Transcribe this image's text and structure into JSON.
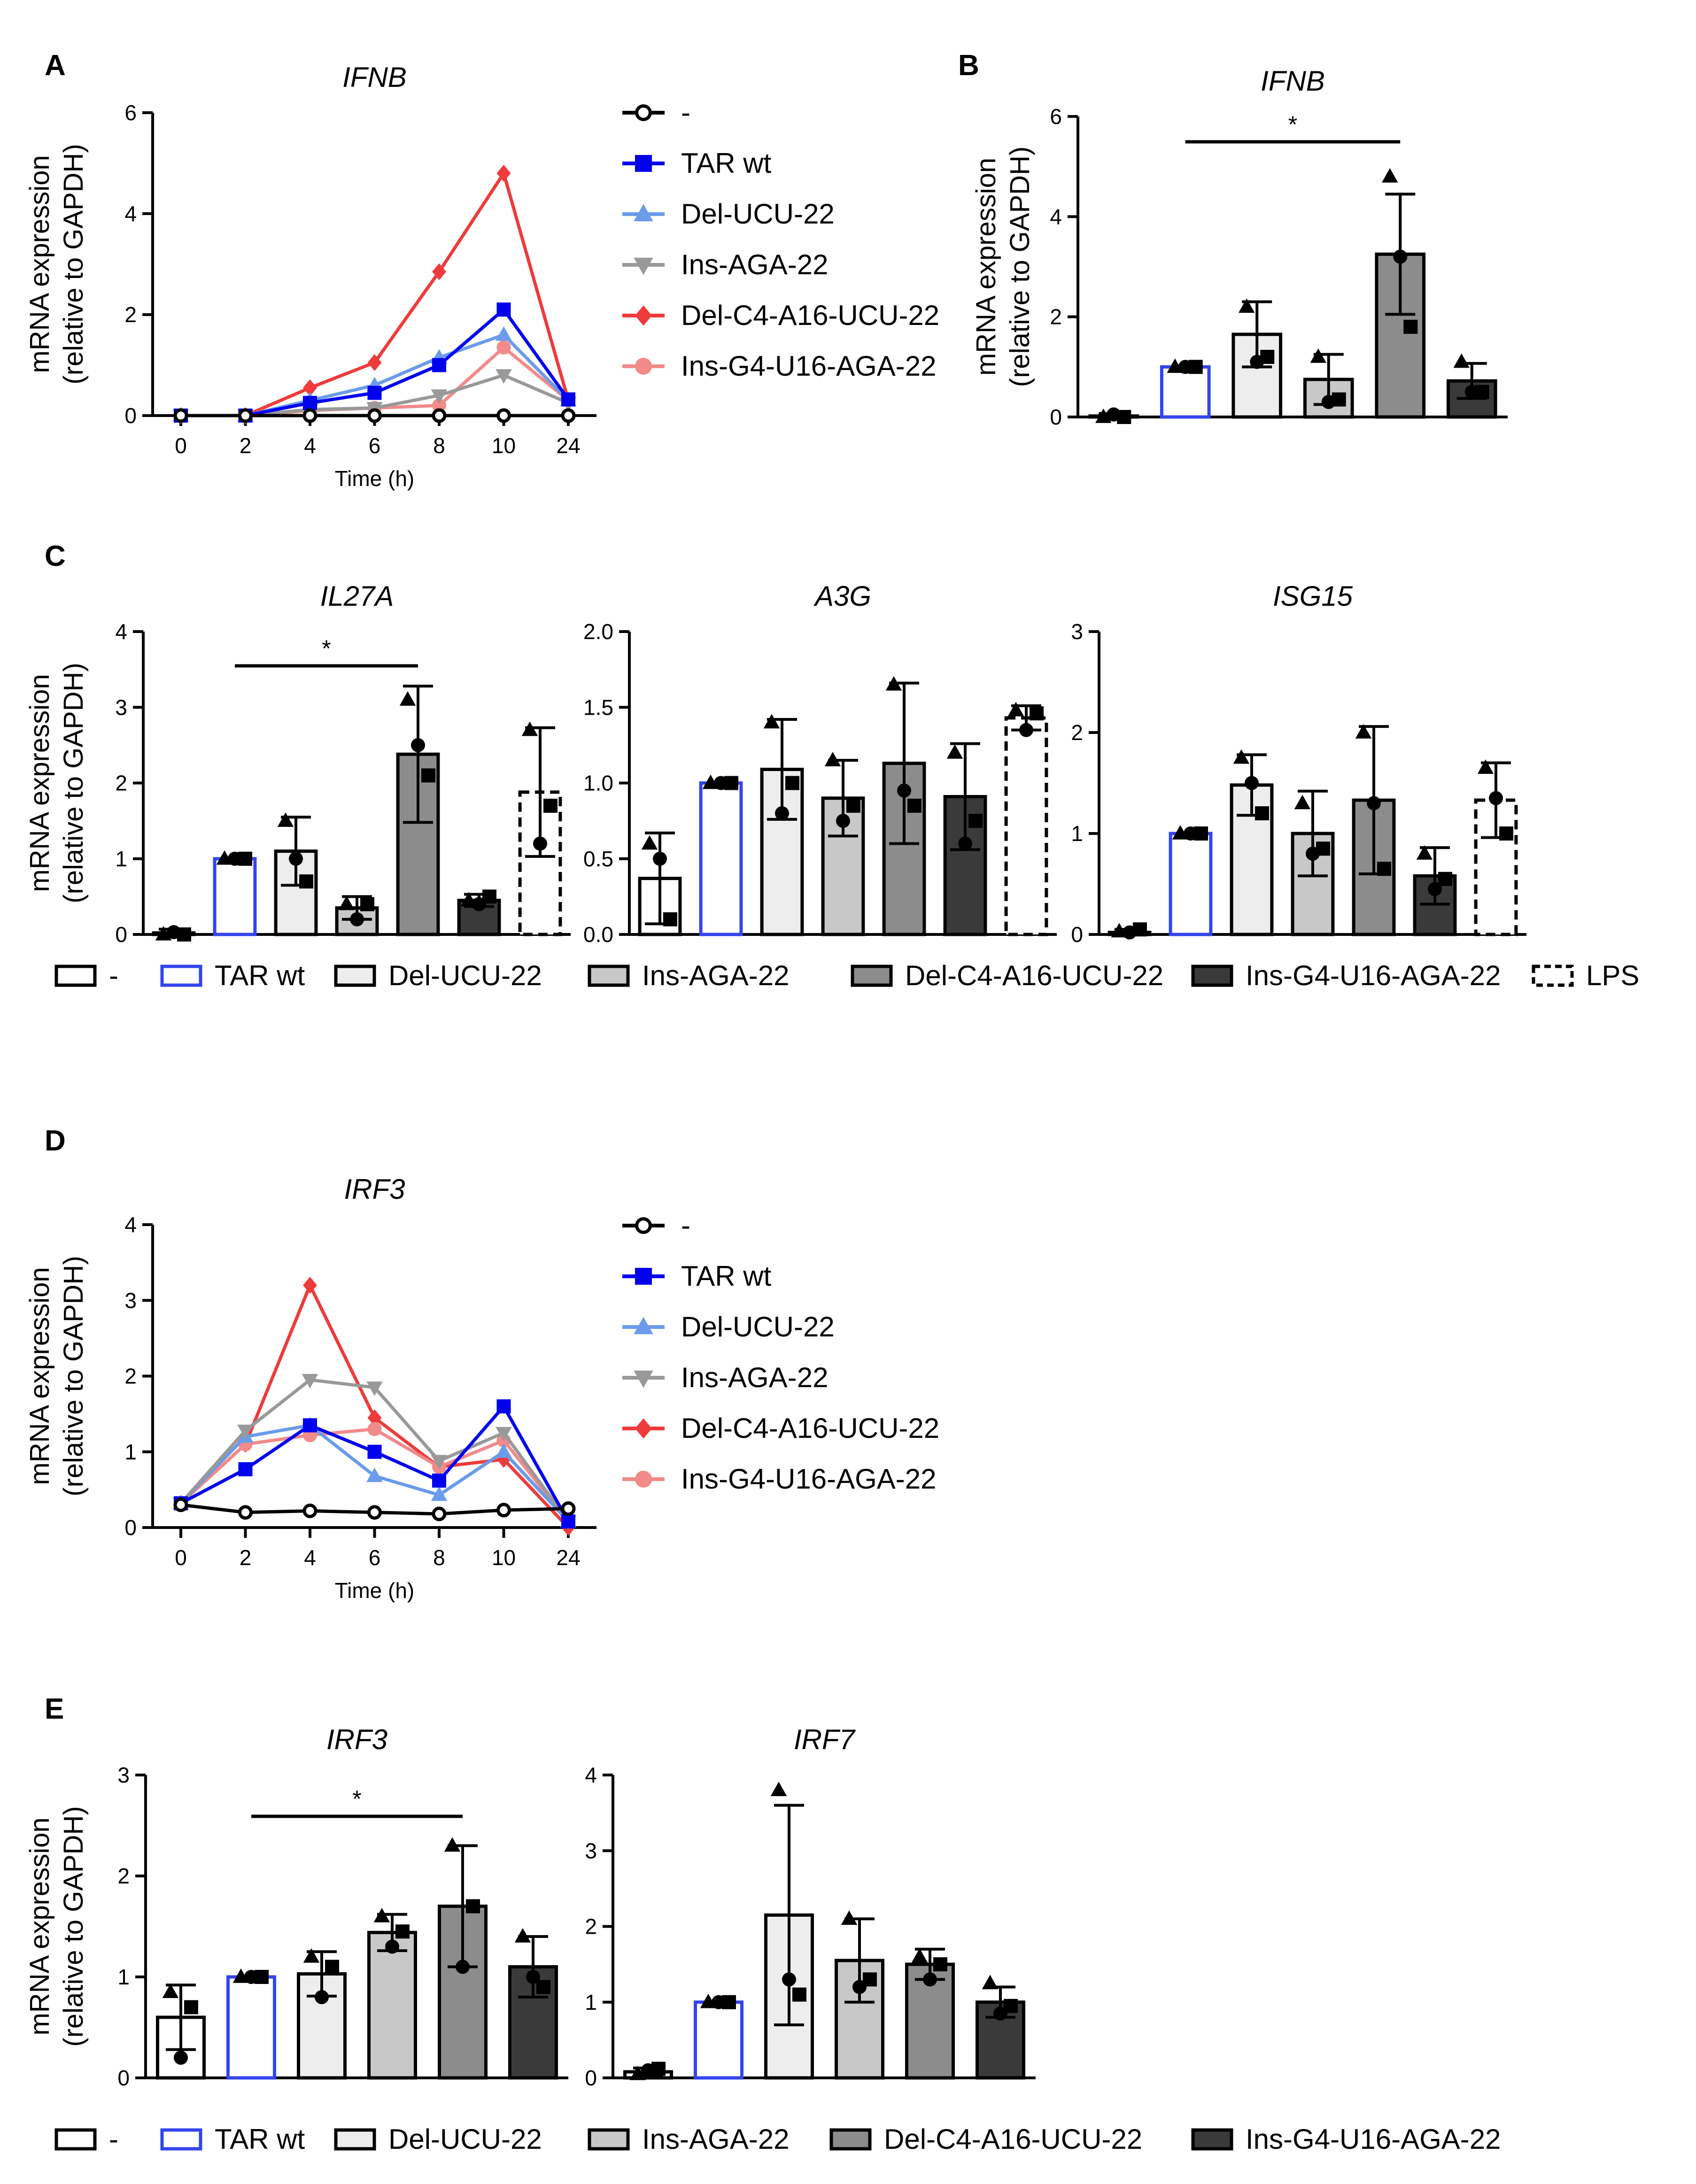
{
  "panel_labels": [
    "A",
    "B",
    "C",
    "D",
    "E"
  ],
  "ylabel_line1": "mRNA expression",
  "ylabel_line2": "(relative to GAPDH)",
  "line_legend": [
    {
      "label": "-",
      "color": "#000000",
      "marker": "open-circle"
    },
    {
      "label": "TAR wt",
      "color": "#0000ee",
      "marker": "square"
    },
    {
      "label": "Del-UCU-22",
      "color": "#6b9bea",
      "marker": "triangle-up"
    },
    {
      "label": "Ins-AGA-22",
      "color": "#999999",
      "marker": "triangle-down"
    },
    {
      "label": "Del-C4-A16-UCU-22",
      "color": "#ee3b3b",
      "marker": "diamond"
    },
    {
      "label": "Ins-G4-U16-AGA-22",
      "color": "#f28a8a",
      "marker": "circle"
    }
  ],
  "bar_legend_C": [
    {
      "label": "-",
      "fill": "#ffffff",
      "stroke": "#000000",
      "dash": false
    },
    {
      "label": "TAR wt",
      "fill": "#ffffff",
      "stroke": "#3344ee",
      "dash": false
    },
    {
      "label": "Del-UCU-22",
      "fill": "#ededed",
      "stroke": "#000000",
      "dash": false
    },
    {
      "label": "Ins-AGA-22",
      "fill": "#c8c8c8",
      "stroke": "#000000",
      "dash": false
    },
    {
      "label": "Del-C4-A16-UCU-22",
      "fill": "#8c8c8c",
      "stroke": "#000000",
      "dash": false
    },
    {
      "label": "Ins-G4-U16-AGA-22",
      "fill": "#3a3a3a",
      "stroke": "#000000",
      "dash": false
    },
    {
      "label": "LPS",
      "fill": "#ffffff",
      "stroke": "#000000",
      "dash": true
    }
  ],
  "bar_legend_E": [
    {
      "label": "-",
      "fill": "#ffffff",
      "stroke": "#000000",
      "dash": false
    },
    {
      "label": "TAR wt",
      "fill": "#ffffff",
      "stroke": "#3344ee",
      "dash": false
    },
    {
      "label": "Del-UCU-22",
      "fill": "#ededed",
      "stroke": "#000000",
      "dash": false
    },
    {
      "label": "Ins-AGA-22",
      "fill": "#c8c8c8",
      "stroke": "#000000",
      "dash": false
    },
    {
      "label": "Del-C4-A16-UCU-22",
      "fill": "#8c8c8c",
      "stroke": "#000000",
      "dash": false
    },
    {
      "label": "Ins-G4-U16-AGA-22",
      "fill": "#3a3a3a",
      "stroke": "#000000",
      "dash": false
    }
  ],
  "chart_data": [
    {
      "id": "A",
      "type": "line",
      "title": "IFNB",
      "xlabel": "Time (h)",
      "ylabel": "mRNA expression (relative to GAPDH)",
      "categories": [
        "0",
        "2",
        "4",
        "6",
        "8",
        "10",
        "24"
      ],
      "ylim": [
        0,
        6
      ],
      "yticks": [
        0,
        2,
        4,
        6
      ],
      "series": [
        {
          "name": "-",
          "values": [
            0,
            0,
            0,
            0,
            0,
            0,
            0
          ]
        },
        {
          "name": "TAR wt",
          "values": [
            0,
            0,
            0.25,
            0.45,
            1.0,
            2.1,
            0.32
          ]
        },
        {
          "name": "Del-UCU-22",
          "values": [
            0,
            0,
            0.3,
            0.6,
            1.15,
            1.6,
            0.3
          ]
        },
        {
          "name": "Ins-AGA-22",
          "values": [
            0,
            0,
            0.12,
            0.15,
            0.4,
            0.8,
            0.25
          ]
        },
        {
          "name": "Del-C4-A16-UCU-22",
          "values": [
            0,
            0,
            0.55,
            1.05,
            2.85,
            4.8,
            0.3
          ]
        },
        {
          "name": "Ins-G4-U16-AGA-22",
          "values": [
            0,
            0,
            0.1,
            0.15,
            0.2,
            1.35,
            0.3
          ]
        }
      ]
    },
    {
      "id": "B",
      "type": "bar",
      "title": "IFNB",
      "ylabel": "mRNA expression (relative to GAPDH)",
      "categories": [
        "-",
        "TAR wt",
        "Del-UCU-22",
        "Ins-AGA-22",
        "Del-C4-A16-UCU-22",
        "Ins-G4-U16-AGA-22"
      ],
      "values": [
        0.02,
        1.0,
        1.65,
        0.75,
        3.25,
        0.72
      ],
      "errors": [
        0.05,
        0.0,
        0.65,
        0.5,
        1.2,
        0.35
      ],
      "points": [
        [
          0,
          0.05,
          0
        ],
        [
          1,
          1,
          1
        ],
        [
          2.2,
          1.1,
          1.2
        ],
        [
          1.2,
          0.3,
          0.35
        ],
        [
          4.8,
          3.2,
          1.8
        ],
        [
          1.1,
          0.5,
          0.5
        ]
      ],
      "ylim": [
        0,
        6
      ],
      "yticks": [
        0,
        2,
        4,
        6
      ],
      "significance": {
        "from": "TAR wt",
        "to": "Del-C4-A16-UCU-22",
        "label": "*"
      }
    },
    {
      "id": "C1",
      "type": "bar",
      "title": "IL27A",
      "ylabel": "mRNA expression (relative to GAPDH)",
      "categories": [
        "-",
        "TAR wt",
        "Del-UCU-22",
        "Ins-AGA-22",
        "Del-C4-A16-UCU-22",
        "Ins-G4-U16-AGA-22",
        "LPS"
      ],
      "values": [
        0.02,
        1.0,
        1.1,
        0.35,
        2.38,
        0.45,
        1.88
      ],
      "errors": [
        0.05,
        0.0,
        0.45,
        0.15,
        0.9,
        0.08,
        0.85
      ],
      "points": [
        [
          0,
          0.03,
          0
        ],
        [
          1,
          1,
          1
        ],
        [
          1.5,
          1.0,
          0.7
        ],
        [
          0.4,
          0.2,
          0.4
        ],
        [
          3.1,
          2.5,
          2.1
        ],
        [
          0.45,
          0.4,
          0.5
        ],
        [
          2.7,
          1.2,
          1.7
        ]
      ],
      "ylim": [
        0,
        4
      ],
      "yticks": [
        0,
        1,
        2,
        3,
        4
      ],
      "significance": {
        "from": "TAR wt",
        "to": "Del-C4-A16-UCU-22",
        "label": "*"
      }
    },
    {
      "id": "C2",
      "type": "bar",
      "title": "A3G",
      "ylabel": "",
      "categories": [
        "-",
        "TAR wt",
        "Del-UCU-22",
        "Ins-AGA-22",
        "Del-C4-A16-UCU-22",
        "Ins-G4-U16-AGA-22",
        "LPS"
      ],
      "values": [
        0.37,
        1.0,
        1.09,
        0.9,
        1.13,
        0.91,
        1.43
      ],
      "errors": [
        0.3,
        0.0,
        0.33,
        0.25,
        0.53,
        0.35,
        0.08
      ],
      "points": [
        [
          0.6,
          0.5,
          0.1
        ],
        [
          1,
          1,
          1
        ],
        [
          1.4,
          0.8,
          1.0
        ],
        [
          1.15,
          0.75,
          0.85
        ],
        [
          1.65,
          0.95,
          0.85
        ],
        [
          1.2,
          0.6,
          0.75
        ],
        [
          1.48,
          1.35,
          1.46
        ]
      ],
      "ylim": [
        0,
        2.0
      ],
      "yticks": [
        0.0,
        0.5,
        1.0,
        1.5,
        2.0
      ]
    },
    {
      "id": "C3",
      "type": "bar",
      "title": "ISG15",
      "ylabel": "",
      "categories": [
        "-",
        "TAR wt",
        "Del-UCU-22",
        "Ins-AGA-22",
        "Del-C4-A16-UCU-22",
        "Ins-G4-U16-AGA-22",
        "LPS"
      ],
      "values": [
        0.02,
        1.0,
        1.48,
        1.0,
        1.33,
        0.58,
        1.33
      ],
      "errors": [
        0.03,
        0.0,
        0.3,
        0.42,
        0.73,
        0.28,
        0.37
      ],
      "points": [
        [
          0.03,
          0.02,
          0.05
        ],
        [
          1,
          1,
          1
        ],
        [
          1.75,
          1.5,
          1.2
        ],
        [
          1.3,
          0.8,
          0.85
        ],
        [
          2.0,
          1.3,
          0.65
        ],
        [
          0.8,
          0.45,
          0.55
        ],
        [
          1.65,
          1.35,
          1.0
        ]
      ],
      "ylim": [
        0,
        3
      ],
      "yticks": [
        0,
        1,
        2,
        3
      ]
    },
    {
      "id": "D",
      "type": "line",
      "title": "IRF3",
      "xlabel": "Time (h)",
      "ylabel": "mRNA expression (relative to GAPDH)",
      "categories": [
        "0",
        "2",
        "4",
        "6",
        "8",
        "10",
        "24"
      ],
      "ylim": [
        0,
        4
      ],
      "yticks": [
        0,
        1,
        2,
        3,
        4
      ],
      "series": [
        {
          "name": "-",
          "values": [
            0.3,
            0.2,
            0.22,
            0.2,
            0.18,
            0.23,
            0.25
          ]
        },
        {
          "name": "TAR wt",
          "values": [
            0.32,
            0.77,
            1.35,
            1.0,
            0.62,
            1.6,
            0.08
          ]
        },
        {
          "name": "Del-UCU-22",
          "values": [
            0.32,
            1.2,
            1.35,
            0.68,
            0.43,
            1.0,
            0.08
          ]
        },
        {
          "name": "Ins-AGA-22",
          "values": [
            0.32,
            1.28,
            1.95,
            1.85,
            0.88,
            1.25,
            0.08
          ]
        },
        {
          "name": "Del-C4-A16-UCU-22",
          "values": [
            0.32,
            1.1,
            3.2,
            1.45,
            0.8,
            0.9,
            0.0
          ]
        },
        {
          "name": "Ins-G4-U16-AGA-22",
          "values": [
            0.32,
            1.1,
            1.22,
            1.3,
            0.8,
            1.15,
            0.08
          ]
        }
      ]
    },
    {
      "id": "E1",
      "type": "bar",
      "title": "IRF3",
      "ylabel": "mRNA expression (relative to GAPDH)",
      "categories": [
        "-",
        "TAR wt",
        "Del-UCU-22",
        "Ins-AGA-22",
        "Del-C4-A16-UCU-22",
        "Ins-G4-U16-AGA-22"
      ],
      "values": [
        0.6,
        1.0,
        1.03,
        1.44,
        1.7,
        1.1
      ],
      "errors": [
        0.32,
        0.0,
        0.22,
        0.18,
        0.6,
        0.3
      ],
      "points": [
        [
          0.85,
          0.2,
          0.7
        ],
        [
          1,
          1,
          1
        ],
        [
          1.2,
          0.8,
          1.1
        ],
        [
          1.6,
          1.3,
          1.45
        ],
        [
          2.3,
          1.1,
          1.7
        ],
        [
          1.4,
          1.0,
          0.9
        ]
      ],
      "ylim": [
        0,
        3
      ],
      "yticks": [
        0,
        1,
        2,
        3
      ],
      "significance": {
        "from": "TAR wt",
        "to": "Del-C4-A16-UCU-22",
        "label": "*"
      }
    },
    {
      "id": "E2",
      "type": "bar",
      "title": "IRF7",
      "ylabel": "",
      "categories": [
        "-",
        "TAR wt",
        "Del-UCU-22",
        "Ins-AGA-22",
        "Del-C4-A16-UCU-22",
        "Ins-G4-U16-AGA-22"
      ],
      "values": [
        0.08,
        1.0,
        2.15,
        1.55,
        1.5,
        1.0
      ],
      "errors": [
        0.05,
        0.0,
        1.45,
        0.55,
        0.2,
        0.2
      ],
      "points": [
        [
          0.05,
          0.1,
          0.12
        ],
        [
          1,
          1,
          1
        ],
        [
          3.8,
          1.3,
          1.1
        ],
        [
          2.1,
          1.2,
          1.3
        ],
        [
          1.6,
          1.3,
          1.5
        ],
        [
          1.25,
          0.85,
          0.95
        ]
      ],
      "ylim": [
        0,
        4
      ],
      "yticks": [
        0,
        1,
        2,
        3,
        4
      ]
    }
  ]
}
